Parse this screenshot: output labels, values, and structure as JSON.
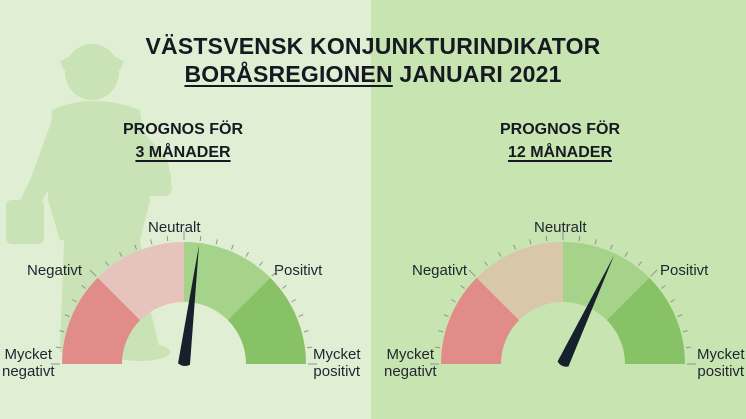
{
  "header": {
    "line1": "VÄSTSVENSK KONJUNKTURINDIKATOR",
    "line2_underlined": "BORÅSREGIONEN",
    "line2_rest": " JANUARI 2021"
  },
  "gauges": [
    {
      "heading_line1": "PROGNOS FÖR",
      "heading_line2": "3 MÅNADER",
      "needle_fraction": 0.54,
      "labels": {
        "neutral": "Neutralt",
        "negative": "Negativt",
        "positive": "Positivt",
        "very_negative_1": "Mycket",
        "very_negative_2": "negativt",
        "very_positive_1": "Mycket",
        "very_positive_2": "positivt"
      }
    },
    {
      "heading_line1": "PROGNOS FÖR",
      "heading_line2": "12 MÅNADER",
      "needle_fraction": 0.64,
      "labels": {
        "neutral": "Neutralt",
        "negative": "Negativt",
        "positive": "Positivt",
        "very_negative_1": "Mycket",
        "very_negative_2": "negativt",
        "very_positive_1": "Mycket",
        "very_positive_2": "positivt"
      }
    }
  ],
  "colors": {
    "left_background": "#e0eed3",
    "right_background": "#c7e4b1",
    "very_negative": "#e28c8a",
    "negative_left": "#e6c3bc",
    "negative_right": "#d9c7a9",
    "positive": "#a6d38a",
    "very_positive": "#88c266",
    "needle": "#17212b"
  }
}
